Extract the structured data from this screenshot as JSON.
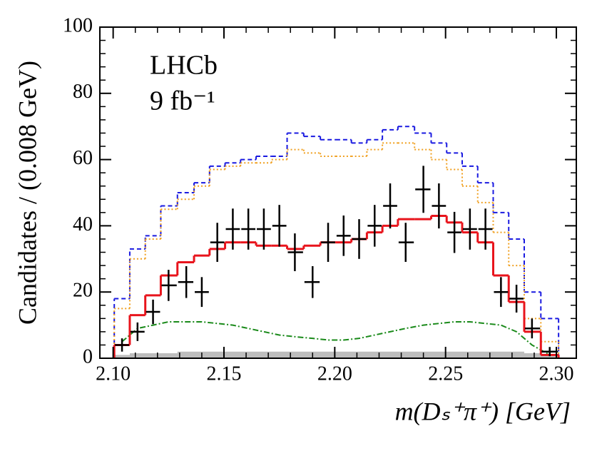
{
  "chart_data": {
    "type": "histogram",
    "annotations": [
      "LHCb",
      "9 fb⁻¹"
    ],
    "xlabel": "m(Dₛ⁺π⁺) [GeV]",
    "ylabel": "Candidates / (0.008 GeV)",
    "x": [
      2.104,
      2.111,
      2.118,
      2.125,
      2.133,
      2.14,
      2.147,
      2.154,
      2.161,
      2.168,
      2.175,
      2.182,
      2.19,
      2.197,
      2.204,
      2.211,
      2.218,
      2.225,
      2.232,
      2.24,
      2.247,
      2.254,
      2.261,
      2.268,
      2.275,
      2.282,
      2.289,
      2.297
    ],
    "series": [
      {
        "kind": "area",
        "color": "#bdbdbd",
        "values": [
          1,
          1.5,
          1.5,
          1.5,
          2,
          2,
          2,
          2,
          2,
          2,
          2,
          2,
          2,
          2,
          2,
          2,
          2,
          2,
          2,
          2,
          2,
          2,
          2,
          2,
          2,
          2,
          1.5,
          1
        ]
      },
      {
        "kind": "step",
        "color": "#1a1ae0",
        "dash": "6,4",
        "values": [
          18,
          33,
          37,
          46,
          50,
          53,
          58,
          59,
          60,
          61,
          61,
          68,
          67,
          66,
          66,
          65,
          66,
          69,
          70,
          68,
          65,
          62,
          58,
          53,
          44,
          36,
          20,
          12
        ]
      },
      {
        "kind": "step",
        "color": "#f0a020",
        "dash": "2,3",
        "values": [
          15,
          30,
          36,
          45,
          48,
          52,
          57,
          58,
          59,
          59,
          60,
          63,
          62,
          61,
          61,
          61,
          63,
          65,
          65,
          63,
          60,
          57,
          52,
          47,
          38,
          28,
          12,
          5
        ]
      },
      {
        "kind": "line",
        "color": "#1a8a1a",
        "dash": "8,3,2,3",
        "values": [
          5,
          9,
          10,
          11,
          11,
          11,
          10.5,
          10,
          9,
          8,
          7,
          6.5,
          6,
          5.5,
          5.5,
          6,
          7,
          8,
          9,
          10,
          10.5,
          11,
          11,
          10.5,
          10,
          8,
          4,
          1
        ]
      },
      {
        "kind": "step",
        "color": "#e8141c",
        "values": [
          4,
          13,
          19,
          25,
          29,
          31,
          33,
          35,
          35,
          34,
          34,
          33,
          34,
          35,
          35,
          36,
          38,
          40,
          42,
          42,
          43,
          41,
          38,
          35,
          25,
          17,
          8,
          1
        ]
      },
      {
        "kind": "errorbar",
        "color": "#000000",
        "values": [
          4,
          8,
          14,
          22,
          23,
          20,
          35,
          39,
          39,
          39,
          40,
          32,
          23,
          35,
          37,
          36,
          40,
          46,
          35,
          51,
          46,
          38,
          39,
          39,
          20,
          18,
          9,
          2
        ],
        "yerr": [
          2,
          2.8,
          3.7,
          4.7,
          4.8,
          4.5,
          5.9,
          6.2,
          6.2,
          6.2,
          6.3,
          5.7,
          4.8,
          5.9,
          6.1,
          6,
          6.3,
          6.8,
          5.9,
          7.1,
          6.8,
          6.2,
          6.2,
          6.2,
          4.5,
          4.2,
          3,
          1.4
        ]
      }
    ],
    "xlim": [
      2.094,
      2.309
    ],
    "xticks": [
      {
        "value": 2.1,
        "label": "2.10"
      },
      {
        "value": 2.15,
        "label": "2.15"
      },
      {
        "value": 2.2,
        "label": "2.20"
      },
      {
        "value": 2.25,
        "label": "2.25"
      },
      {
        "value": 2.3,
        "label": "2.30"
      }
    ],
    "ylim": [
      0,
      100
    ],
    "yticks": [
      0,
      20,
      40,
      60,
      80,
      100
    ]
  }
}
